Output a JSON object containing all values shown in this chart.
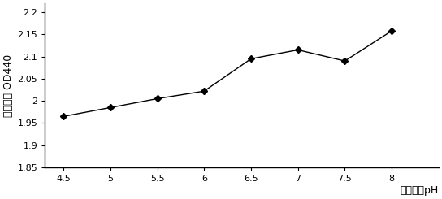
{
  "x": [
    4.5,
    5.0,
    5.5,
    6.0,
    6.5,
    7.0,
    7.5,
    8.0
  ],
  "y": [
    1.965,
    1.985,
    2.005,
    2.022,
    2.095,
    2.115,
    2.09,
    2.158
  ],
  "xlim": [
    4.3,
    8.5
  ],
  "ylim": [
    1.85,
    2.22
  ],
  "xticks": [
    4.5,
    5,
    5.5,
    6,
    6.5,
    7,
    7.5,
    8
  ],
  "yticks": [
    1.85,
    1.9,
    1.95,
    2.0,
    2.05,
    2.1,
    2.15,
    2.2
  ],
  "xtick_labels": [
    "4.5",
    "5",
    "5.5",
    "6",
    "6.5",
    "7",
    "7.5",
    "8"
  ],
  "ytick_labels": [
    "1.85",
    "1.9",
    "1.95",
    "2",
    "2.05",
    "2.1",
    "2.15",
    "2.2"
  ],
  "xlabel": "培养基质pH",
  "ylabel": "吸光度值 OD440",
  "line_color": "#000000",
  "marker": "D",
  "marker_size": 4,
  "line_width": 1.0,
  "background_color": "#ffffff",
  "tick_fontsize": 8,
  "label_fontsize": 9
}
